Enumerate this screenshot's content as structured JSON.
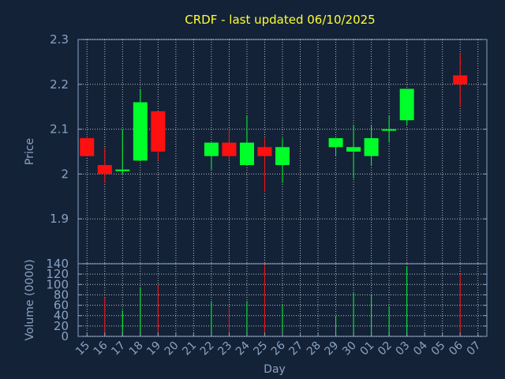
{
  "title": "CRDF - last updated 06/10/2025",
  "colors": {
    "background": "#132237",
    "up": "#00ff2a",
    "down": "#ff1010",
    "text": "#8aa2c0",
    "title": "#ffff33",
    "axis": "#8aa2c0",
    "grid": "#ffffff"
  },
  "chart_data": [
    {
      "type": "candlestick",
      "title": "CRDF - last updated 06/10/2025",
      "ylabel": "Price",
      "ylim": [
        1.8,
        2.3
      ],
      "yticks": [
        1.9,
        2.0,
        2.1,
        2.2,
        2.3
      ],
      "ytick_labels": [
        "1.9",
        "2",
        "2.1",
        "2.2",
        "2.3"
      ],
      "grid": true,
      "categories": [
        "15",
        "16",
        "17",
        "18",
        "19",
        "20",
        "21",
        "22",
        "23",
        "24",
        "25",
        "26",
        "27",
        "28",
        "29",
        "30",
        "01",
        "02",
        "03",
        "04",
        "05",
        "06",
        "07"
      ],
      "candles": [
        {
          "x": "15",
          "open": 2.08,
          "close": 2.04,
          "high": 2.08,
          "low": 2.04
        },
        {
          "x": "16",
          "open": 2.02,
          "close": 2.0,
          "high": 2.06,
          "low": 1.98
        },
        {
          "x": "17",
          "open": 2.01,
          "close": 2.01,
          "high": 2.1,
          "low": 2.0
        },
        {
          "x": "18",
          "open": 2.03,
          "close": 2.16,
          "high": 2.19,
          "low": 2.03
        },
        {
          "x": "19",
          "open": 2.14,
          "close": 2.05,
          "high": 2.14,
          "low": 2.03
        },
        {
          "x": "22",
          "open": 2.04,
          "close": 2.07,
          "high": 2.07,
          "low": 2.01
        },
        {
          "x": "23",
          "open": 2.07,
          "close": 2.04,
          "high": 2.1,
          "low": 2.03
        },
        {
          "x": "24",
          "open": 2.02,
          "close": 2.07,
          "high": 2.13,
          "low": 2.02
        },
        {
          "x": "25",
          "open": 2.06,
          "close": 2.04,
          "high": 2.08,
          "low": 1.96
        },
        {
          "x": "26",
          "open": 2.02,
          "close": 2.06,
          "high": 2.08,
          "low": 1.98
        },
        {
          "x": "29",
          "open": 2.06,
          "close": 2.08,
          "high": 2.08,
          "low": 2.04
        },
        {
          "x": "30",
          "open": 2.05,
          "close": 2.06,
          "high": 2.11,
          "low": 1.99
        },
        {
          "x": "01",
          "open": 2.04,
          "close": 2.08,
          "high": 2.11,
          "low": 2.02
        },
        {
          "x": "02",
          "open": 2.1,
          "close": 2.1,
          "high": 2.13,
          "low": 2.07
        },
        {
          "x": "03",
          "open": 2.12,
          "close": 2.19,
          "high": 2.19,
          "low": 2.11
        },
        {
          "x": "06",
          "open": 2.22,
          "close": 2.2,
          "high": 2.27,
          "low": 2.15
        }
      ]
    },
    {
      "type": "bar",
      "xlabel": "Day",
      "ylabel": "Volume (0000)",
      "ylim": [
        0,
        140
      ],
      "yticks": [
        0,
        20,
        40,
        60,
        80,
        100,
        120,
        140
      ],
      "grid": true,
      "categories": [
        "15",
        "16",
        "17",
        "18",
        "19",
        "20",
        "21",
        "22",
        "23",
        "24",
        "25",
        "26",
        "27",
        "28",
        "29",
        "30",
        "01",
        "02",
        "03",
        "04",
        "05",
        "06",
        "07"
      ],
      "bars": [
        {
          "x": "16",
          "value": 75,
          "direction": "down"
        },
        {
          "x": "17",
          "value": 50,
          "direction": "up"
        },
        {
          "x": "18",
          "value": 95,
          "direction": "up"
        },
        {
          "x": "19",
          "value": 98,
          "direction": "down"
        },
        {
          "x": "22",
          "value": 68,
          "direction": "up"
        },
        {
          "x": "23",
          "value": 55,
          "direction": "down"
        },
        {
          "x": "24",
          "value": 68,
          "direction": "up"
        },
        {
          "x": "25",
          "value": 138,
          "direction": "down"
        },
        {
          "x": "26",
          "value": 60,
          "direction": "up"
        },
        {
          "x": "29",
          "value": 40,
          "direction": "up"
        },
        {
          "x": "30",
          "value": 85,
          "direction": "up"
        },
        {
          "x": "01",
          "value": 80,
          "direction": "up"
        },
        {
          "x": "02",
          "value": 58,
          "direction": "up"
        },
        {
          "x": "03",
          "value": 135,
          "direction": "up"
        },
        {
          "x": "06",
          "value": 120,
          "direction": "down"
        }
      ]
    }
  ]
}
